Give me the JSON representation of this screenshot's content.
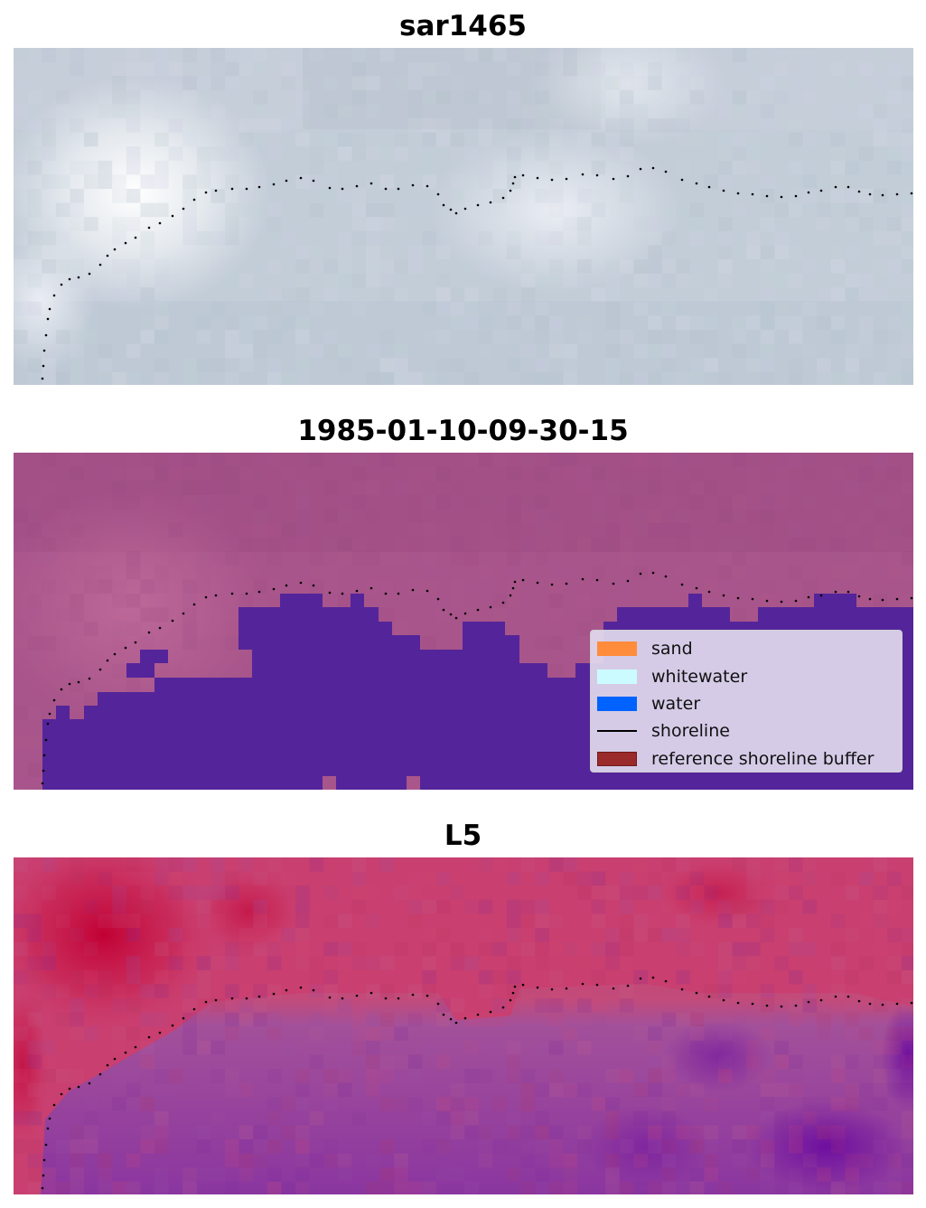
{
  "panels": [
    {
      "title": "sar1465"
    },
    {
      "title": "1985-01-10-09-30-15"
    },
    {
      "title": "L5"
    }
  ],
  "legend": {
    "items": [
      {
        "label": "sand",
        "color": "#ff8c3a",
        "kind": "patch"
      },
      {
        "label": "whitewater",
        "color": "#ccfbff",
        "kind": "patch"
      },
      {
        "label": "water",
        "color": "#0062ff",
        "kind": "patch"
      },
      {
        "label": "shoreline",
        "color": "#000000",
        "kind": "line"
      },
      {
        "label": "reference shoreline buffer",
        "color": "#9b2a2a",
        "kind": "patch"
      }
    ]
  },
  "colors": {
    "sar_base": "#c2ccd8",
    "classified_base": "#a65289",
    "water_mask": "#54249a",
    "l5_land": "#c93e6e",
    "l5_water": "#8f3f9e"
  }
}
